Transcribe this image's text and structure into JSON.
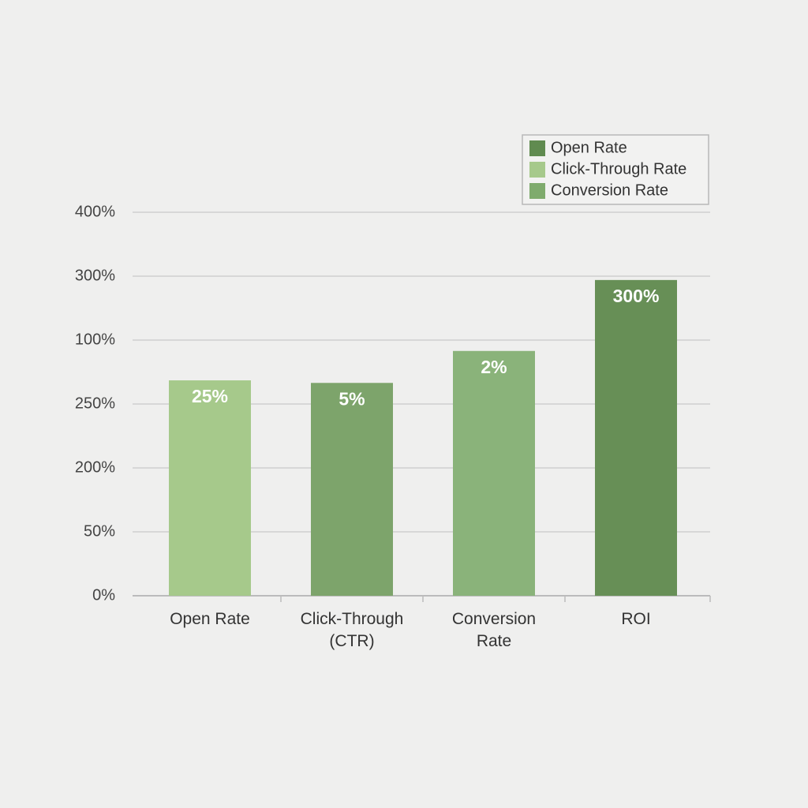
{
  "chart_data": {
    "type": "bar",
    "categories": [
      "Open Rate",
      "Click-Through (CTR)",
      "Conversion Rate",
      "ROI"
    ],
    "values": [
      3.37,
      3.33,
      3.83,
      4.94
    ],
    "colors": [
      "#a6c98b",
      "#7da46b",
      "#8ab37a",
      "#678f56"
    ],
    "bar_labels": [
      "25%",
      "5%",
      "2%",
      "300%"
    ],
    "ylim": [
      0,
      6
    ],
    "yticks": [
      {
        "value": 0,
        "label": "0%"
      },
      {
        "value": 1,
        "label": "50%"
      },
      {
        "value": 2,
        "label": "200%"
      },
      {
        "value": 3,
        "label": "250%"
      },
      {
        "value": 4,
        "label": "100%"
      },
      {
        "value": 5,
        "label": "300%"
      },
      {
        "value": 6,
        "label": "400%"
      }
    ],
    "grid": true,
    "legend": [
      {
        "name": "Open Rate",
        "color": "#608b50"
      },
      {
        "name": "Click-Through Rate",
        "color": "#a6c98b"
      },
      {
        "name": "Conversion Rate",
        "color": "#7fab6d"
      }
    ],
    "legend_position": "upper right"
  }
}
